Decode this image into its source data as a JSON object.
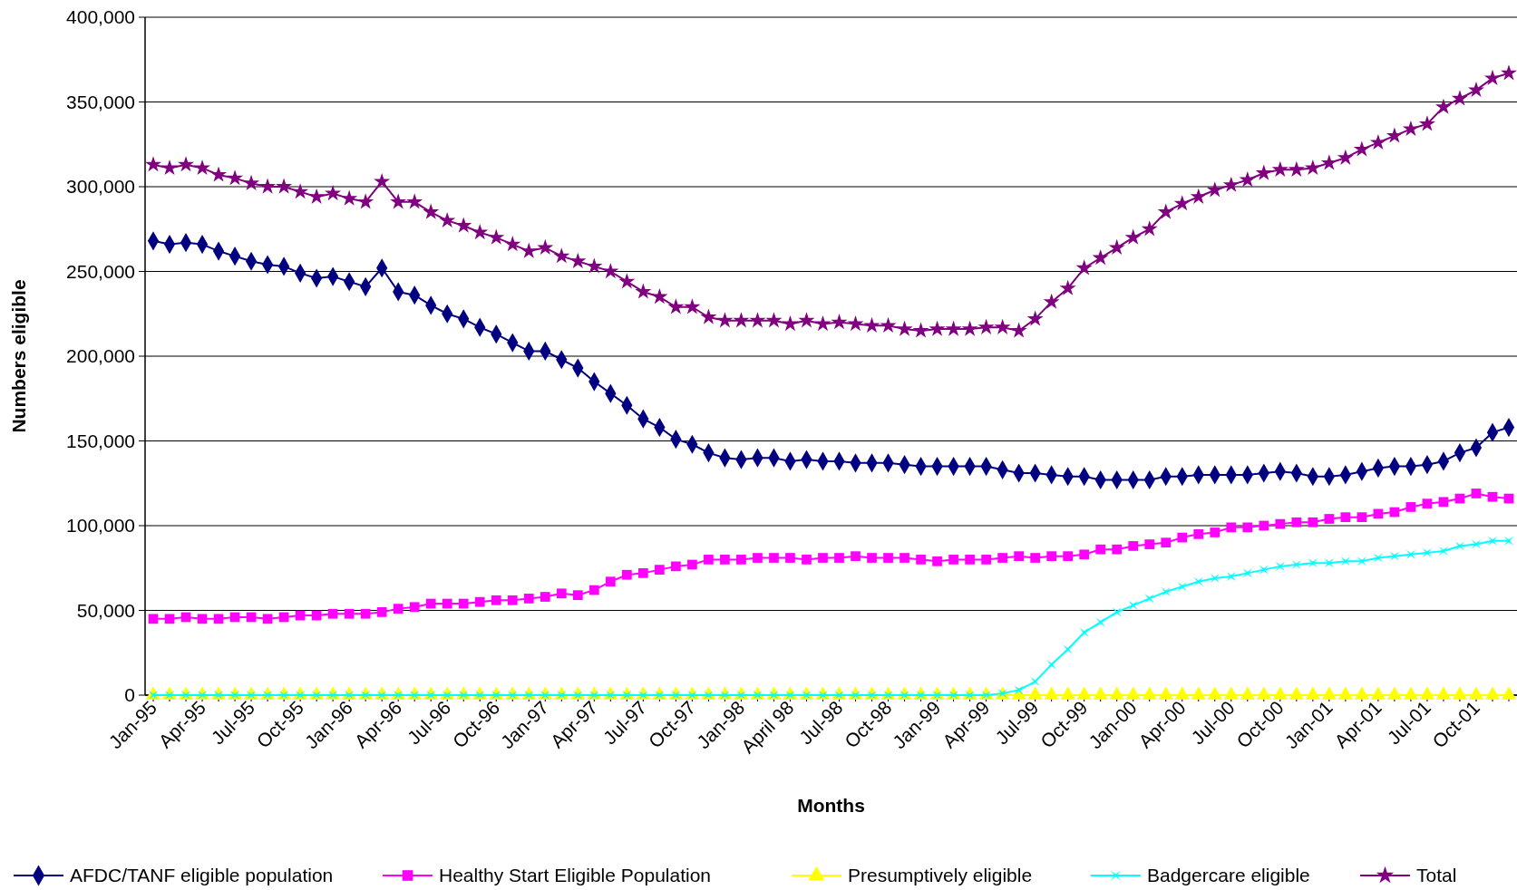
{
  "chart_data": {
    "type": "line",
    "xlabel": "Months",
    "ylabel": "Numbers eligible",
    "categories": [
      "Jan-95",
      null,
      null,
      "Apr-95",
      null,
      null,
      "Jul-95",
      null,
      null,
      "Oct-95",
      null,
      null,
      "Jan-96",
      null,
      null,
      "Apr-96",
      null,
      null,
      "Jul-96",
      null,
      null,
      "Oct-96",
      null,
      null,
      "Jan-97",
      null,
      null,
      "Apr-97",
      null,
      null,
      "Jul-97",
      null,
      null,
      "Oct-97",
      null,
      null,
      "Jan-98",
      null,
      null,
      "April 98",
      null,
      null,
      "Jul-98",
      null,
      null,
      "Oct-98",
      null,
      null,
      "Jan-99",
      null,
      null,
      "Apr-99",
      null,
      null,
      "Jul-99",
      null,
      null,
      "Oct-99",
      null,
      null,
      "Jan-00",
      null,
      null,
      "Apr-00",
      null,
      null,
      "Jul-00",
      null,
      null,
      "Oct-00",
      null,
      null,
      "Jan-01",
      null,
      null,
      "Apr-01",
      null,
      null,
      "Jul-01",
      null,
      null,
      "Oct-01",
      null,
      null
    ],
    "ylim": [
      0,
      400000
    ],
    "yticks": [
      0,
      {
        "value": 50000,
        "label": "50,000"
      },
      {
        "value": 100000,
        "label": "100,000"
      },
      {
        "value": 150000,
        "label": "150,000"
      },
      {
        "value": 200000,
        "label": "200,000"
      },
      {
        "value": 250000,
        "label": "250,000"
      },
      {
        "value": 300000,
        "label": "300,000"
      },
      {
        "value": 350000,
        "label": "350,000"
      },
      {
        "value": 400000,
        "label": "400,000"
      }
    ],
    "grid": "y",
    "legend": "bottom",
    "line_style": "solid",
    "series": [
      {
        "name": "AFDC/TANF eligible population",
        "color": "#000080",
        "marker": "diamond",
        "values": [
          268000,
          266000,
          267000,
          266000,
          262000,
          259000,
          256000,
          254000,
          253000,
          249000,
          246000,
          247000,
          244000,
          241000,
          252000,
          238000,
          236000,
          230000,
          225000,
          222000,
          217000,
          213000,
          208000,
          203000,
          203000,
          198000,
          193000,
          185000,
          178000,
          171000,
          163000,
          158000,
          151000,
          148000,
          143000,
          140000,
          139000,
          140000,
          140000,
          138000,
          139000,
          138000,
          138000,
          137000,
          137000,
          137000,
          136000,
          135000,
          135000,
          135000,
          135000,
          135000,
          133000,
          131000,
          131000,
          130000,
          129000,
          129000,
          127000,
          127000,
          127000,
          127000,
          129000,
          129000,
          130000,
          130000,
          130000,
          130000,
          131000,
          132000,
          131000,
          129000,
          129000,
          130000,
          132000,
          134000,
          135000,
          135000,
          136000,
          138000,
          143000,
          146000,
          155000,
          158000
        ]
      },
      {
        "name": "Healthy Start Eligible Population",
        "color": "#ff00ff",
        "marker": "square",
        "values": [
          45000,
          45000,
          46000,
          45000,
          45000,
          46000,
          46000,
          45000,
          46000,
          47000,
          47000,
          48000,
          48000,
          48000,
          49000,
          51000,
          52000,
          54000,
          54000,
          54000,
          55000,
          56000,
          56000,
          57000,
          58000,
          60000,
          59000,
          62000,
          67000,
          71000,
          72000,
          74000,
          76000,
          77000,
          80000,
          80000,
          80000,
          81000,
          81000,
          81000,
          80000,
          81000,
          81000,
          82000,
          81000,
          81000,
          81000,
          80000,
          79000,
          80000,
          80000,
          80000,
          81000,
          82000,
          81000,
          82000,
          82000,
          83000,
          86000,
          86000,
          88000,
          89000,
          90000,
          93000,
          95000,
          96000,
          99000,
          99000,
          100000,
          101000,
          102000,
          102000,
          104000,
          105000,
          105000,
          107000,
          108000,
          111000,
          113000,
          114000,
          116000,
          119000,
          117000,
          116000
        ]
      },
      {
        "name": "Presumptively eligible",
        "color": "#ffff00",
        "marker": "triangle",
        "values": [
          0,
          0,
          0,
          0,
          0,
          0,
          0,
          0,
          0,
          0,
          0,
          0,
          0,
          0,
          0,
          0,
          0,
          0,
          0,
          0,
          0,
          0,
          0,
          0,
          0,
          0,
          0,
          0,
          0,
          0,
          0,
          0,
          0,
          0,
          0,
          0,
          0,
          0,
          0,
          0,
          0,
          0,
          0,
          0,
          0,
          0,
          0,
          0,
          0,
          0,
          0,
          0,
          0,
          0,
          0,
          0,
          0,
          0,
          0,
          0,
          0,
          0,
          0,
          0,
          0,
          0,
          0,
          0,
          0,
          0,
          0,
          0,
          0,
          0,
          0,
          0,
          0,
          0,
          0,
          0,
          0,
          0,
          0,
          0
        ]
      },
      {
        "name": "Badgercare eligible",
        "color": "#00ffff",
        "marker": "cross",
        "values": [
          0,
          0,
          0,
          0,
          0,
          0,
          0,
          0,
          0,
          0,
          0,
          0,
          0,
          0,
          0,
          0,
          0,
          0,
          0,
          0,
          0,
          0,
          0,
          0,
          0,
          0,
          0,
          0,
          0,
          0,
          0,
          0,
          0,
          0,
          0,
          0,
          0,
          0,
          0,
          0,
          0,
          0,
          0,
          0,
          0,
          0,
          0,
          0,
          0,
          0,
          0,
          0,
          1000,
          3000,
          8000,
          18000,
          27000,
          37000,
          43000,
          49000,
          53000,
          57000,
          61000,
          64000,
          67000,
          69000,
          70000,
          72000,
          74000,
          76000,
          77000,
          78000,
          78000,
          79000,
          79000,
          81000,
          82000,
          83000,
          84000,
          85000,
          88000,
          89000,
          91000,
          91000
        ]
      },
      {
        "name": "Total",
        "color": "#800080",
        "marker": "star",
        "values": [
          313000,
          311000,
          313000,
          311000,
          307000,
          305000,
          302000,
          300000,
          300000,
          297000,
          294000,
          296000,
          293000,
          291000,
          303000,
          291000,
          291000,
          285000,
          280000,
          277000,
          273000,
          270000,
          266000,
          262000,
          264000,
          259000,
          256000,
          253000,
          250000,
          244000,
          238000,
          235000,
          229000,
          229000,
          223000,
          221000,
          221000,
          221000,
          221000,
          219000,
          221000,
          219000,
          220000,
          219000,
          218000,
          218000,
          216000,
          215000,
          216000,
          216000,
          216000,
          217000,
          217000,
          215000,
          222000,
          232000,
          240000,
          252000,
          258000,
          264000,
          270000,
          275000,
          285000,
          290000,
          294000,
          298000,
          301000,
          304000,
          308000,
          310000,
          310000,
          311000,
          314000,
          317000,
          322000,
          326000,
          330000,
          334000,
          337000,
          347000,
          352000,
          357000,
          364000,
          367000
        ]
      }
    ]
  }
}
